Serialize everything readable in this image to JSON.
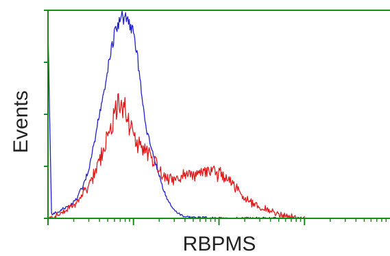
{
  "chart_data": {
    "type": "line",
    "title": "",
    "xlabel": "RBPMS",
    "ylabel": "Events",
    "x_scale": "log",
    "xlim": [
      1,
      10000
    ],
    "ylim": [
      0,
      100
    ],
    "grid": false,
    "legend": "none",
    "frame_color": "#1a8a1a",
    "series": [
      {
        "color": "#1f1fd0",
        "x": [
          1,
          1.1,
          1.3,
          1.5,
          1.8,
          2.1,
          2.5,
          3,
          3.5,
          4,
          4.5,
          5,
          5.5,
          6,
          6.5,
          7,
          7.5,
          8,
          8.5,
          9,
          10,
          11,
          12,
          13,
          14,
          16,
          18,
          20,
          23,
          26,
          30,
          35,
          40,
          50,
          60,
          70,
          80,
          90,
          100,
          150,
          200,
          300,
          500,
          1000
        ],
        "y": [
          95,
          2,
          3,
          5,
          6,
          9,
          15,
          24,
          38,
          52,
          63,
          74,
          84,
          92,
          96,
          98,
          100,
          99,
          100,
          96,
          92,
          82,
          68,
          55,
          45,
          36,
          28,
          21,
          13,
          8,
          4,
          2,
          1,
          0.5,
          0.3,
          0.2,
          0.1,
          0,
          0,
          0,
          0,
          0,
          0,
          0
        ]
      },
      {
        "color": "#e01a1a",
        "x": [
          1,
          1.1,
          1.3,
          1.5,
          1.8,
          2.1,
          2.5,
          3,
          3.5,
          4,
          4.5,
          5,
          5.5,
          6,
          6.5,
          7,
          7.5,
          8,
          8.5,
          9,
          10,
          11,
          12,
          13,
          14,
          16,
          18,
          20,
          23,
          26,
          30,
          35,
          40,
          50,
          60,
          70,
          80,
          90,
          100,
          120,
          140,
          160,
          180,
          200,
          250,
          300,
          400,
          500,
          700,
          900,
          1000
        ],
        "y": [
          0,
          1,
          2,
          4,
          6,
          8,
          13,
          18,
          24,
          31,
          37,
          43,
          51,
          56,
          61,
          63,
          61,
          58,
          54,
          50,
          45,
          42,
          40,
          38,
          36,
          33,
          30,
          26,
          23,
          21,
          21,
          22,
          23,
          23,
          24,
          25,
          24,
          25,
          24,
          22,
          20,
          16,
          13,
          11,
          8,
          6,
          4,
          2,
          1,
          0,
          0
        ]
      }
    ]
  }
}
